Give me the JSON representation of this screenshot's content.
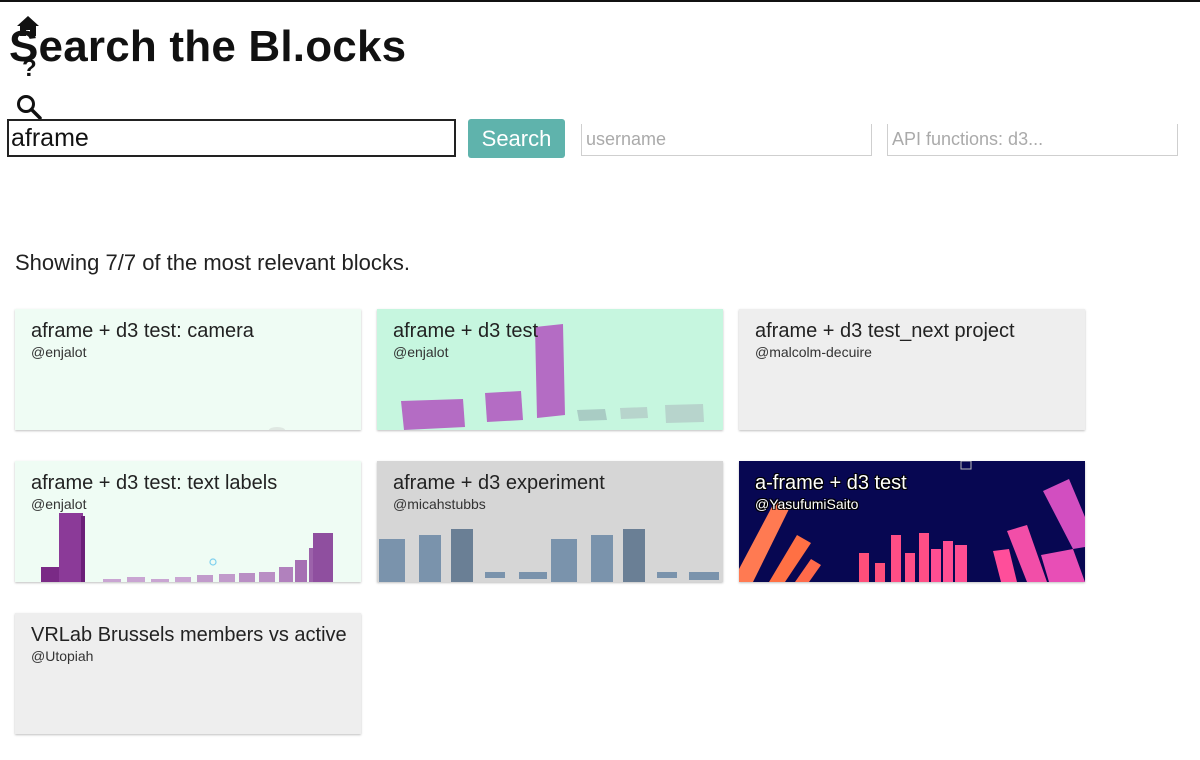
{
  "header": {
    "title": "Search the Bl.ocks",
    "help_glyph": "?"
  },
  "search": {
    "query_value": "aframe",
    "button_label": "Search",
    "username_placeholder": "username",
    "api_placeholder": "API functions: d3..."
  },
  "results": {
    "summary": "Showing 7/7 of the most relevant blocks.",
    "cards": [
      {
        "title": "aframe + d3 test: camera",
        "user": "@enjalot",
        "bg_color": "#effcf4"
      },
      {
        "title": "aframe + d3 test",
        "user": "@enjalot",
        "bg_color": "#c6f6df"
      },
      {
        "title": "aframe + d3 test_next project",
        "user": "@malcolm-decuire",
        "bg_color": "#eeeeee"
      },
      {
        "title": "aframe + d3 test: text labels",
        "user": "@enjalot",
        "bg_color": "#effcf4"
      },
      {
        "title": "aframe + d3 experiment",
        "user": "@micahstubbs",
        "bg_color": "#d6d6d6"
      },
      {
        "title": "a-frame + d3 test",
        "user": "@YasufumiSaito",
        "bg_color": "#070752"
      },
      {
        "title": "VRLab Brussels members vs active",
        "user": "@Utopiah",
        "bg_color": "#eeeeee"
      }
    ]
  },
  "colors": {
    "accent": "#5fb3ac",
    "text": "#222222"
  }
}
